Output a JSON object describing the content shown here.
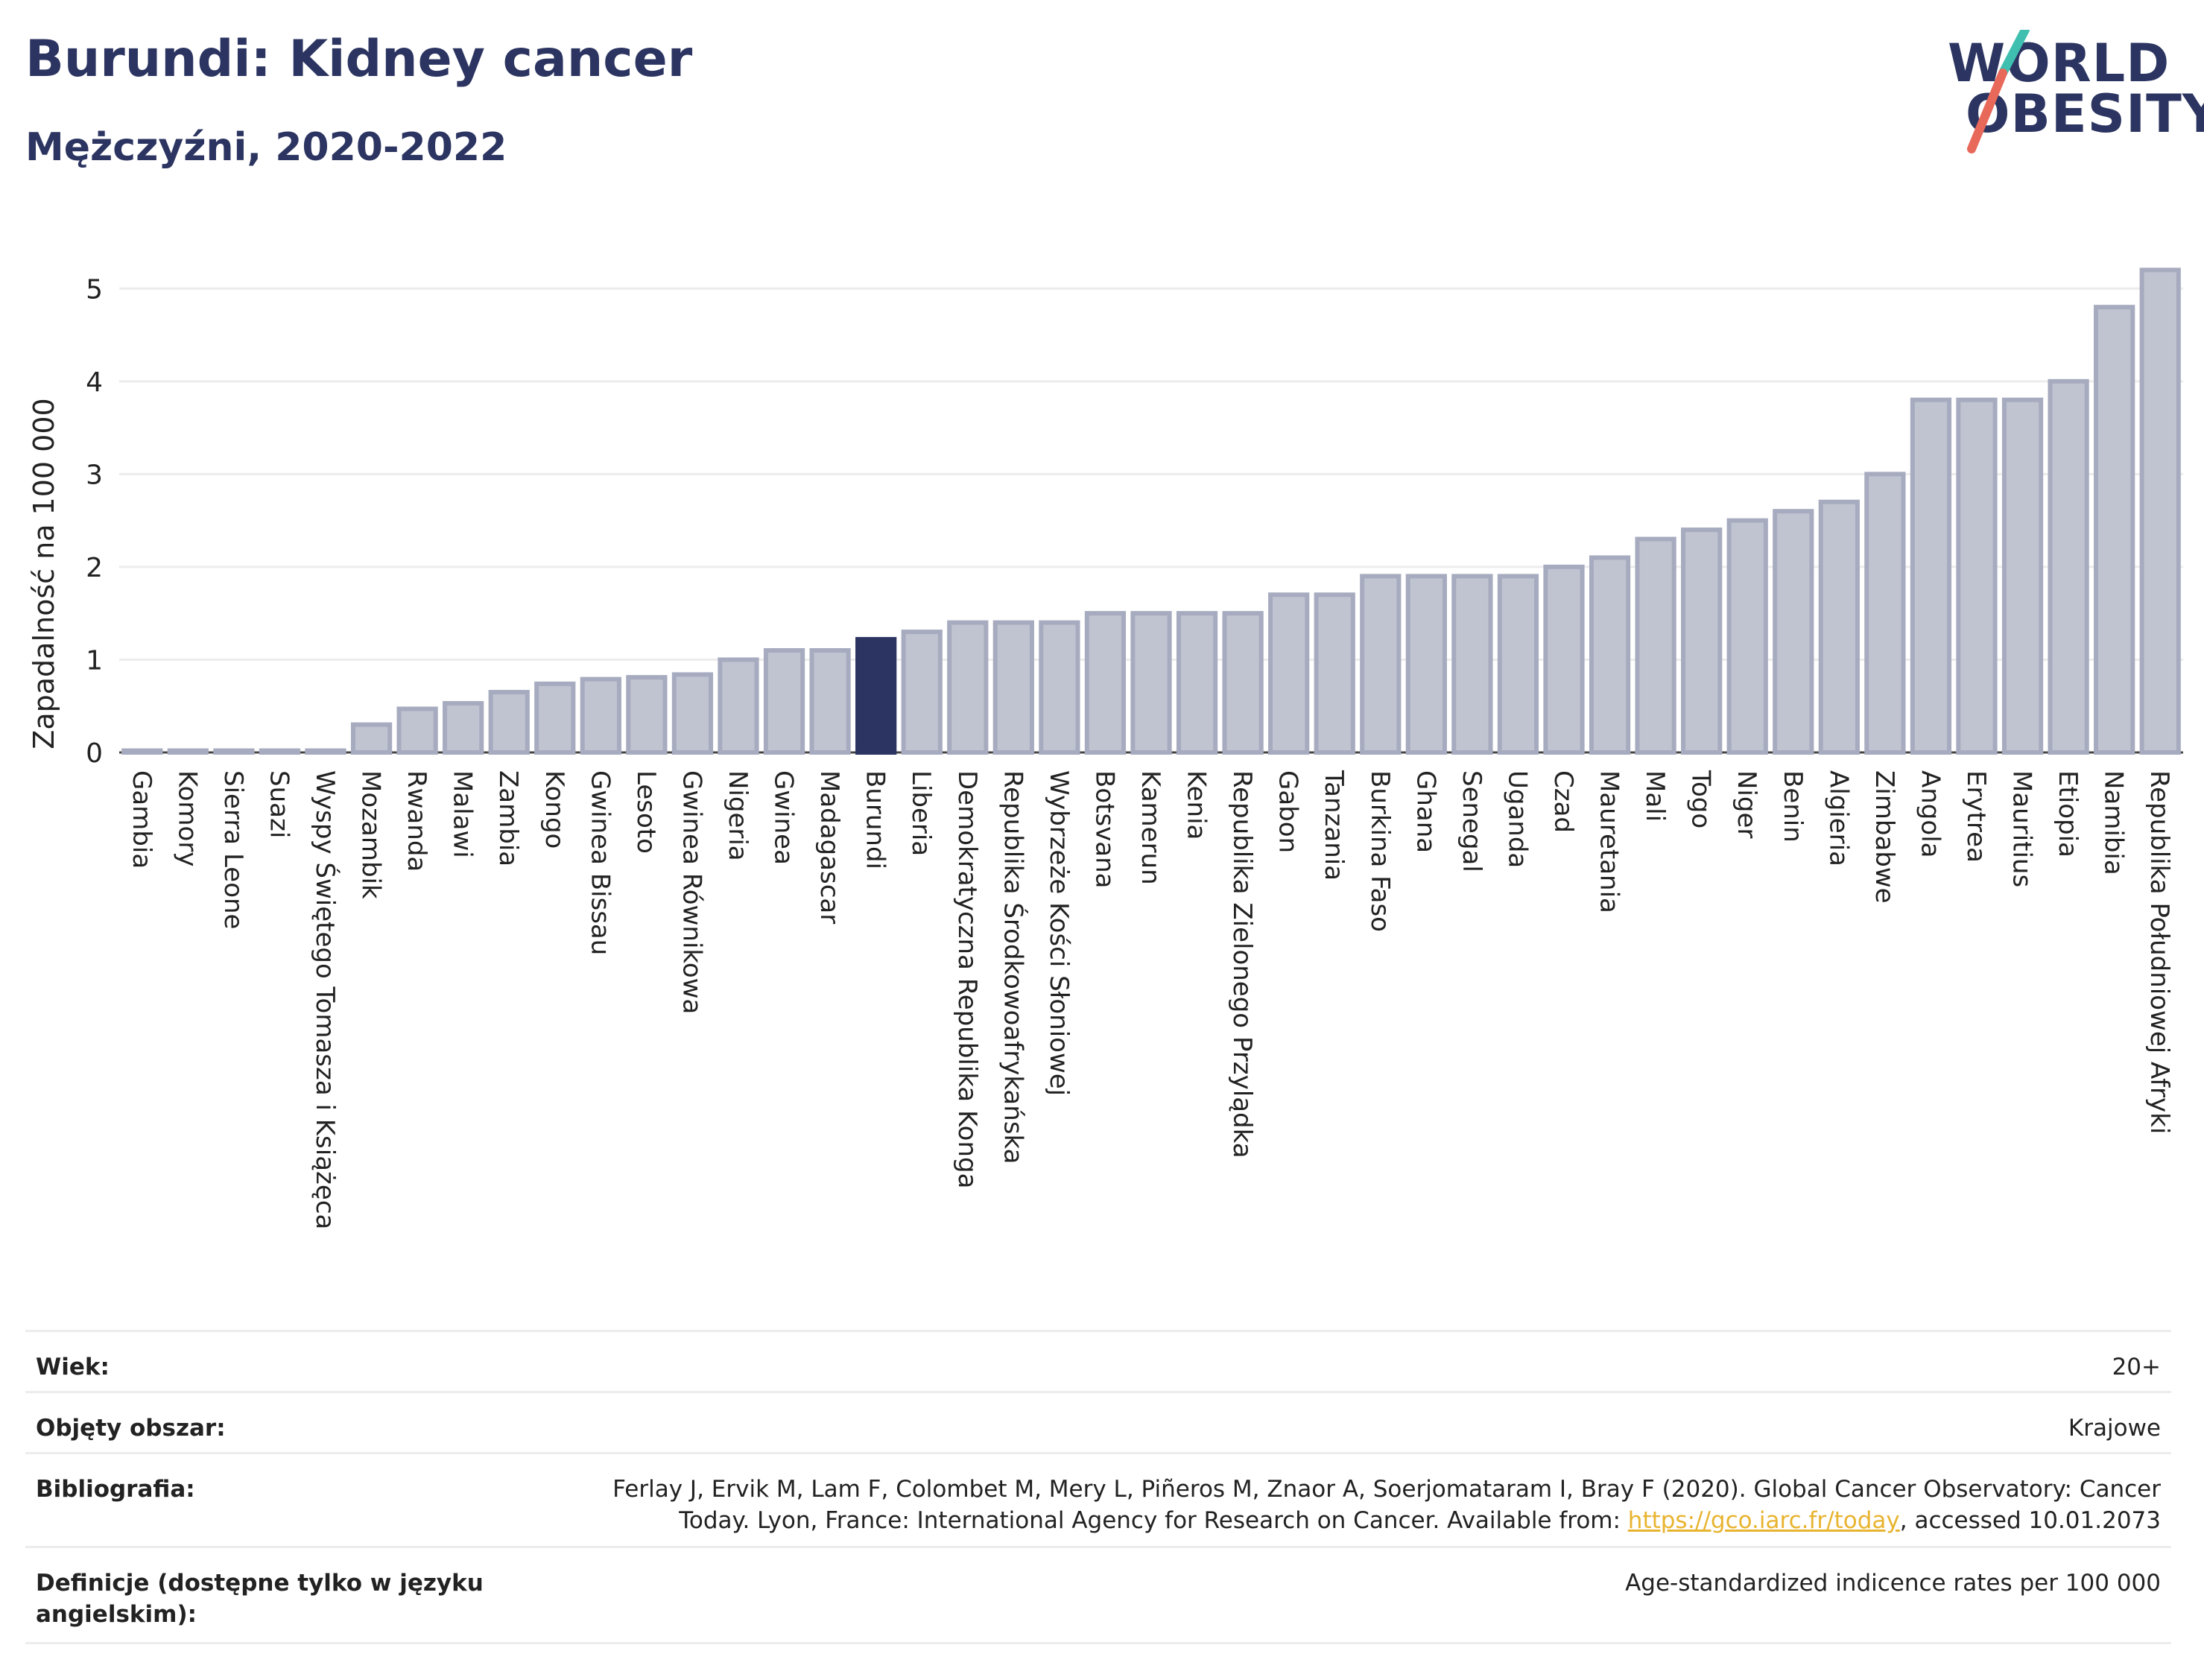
{
  "header": {
    "title": "Burundi: Kidney cancer",
    "subtitle": "Mężczyźni, 2020-2022"
  },
  "logo": {
    "line1": "WORLD",
    "line2": "OBESITY",
    "colors": {
      "text": "#2c3561",
      "slash_top": "#3fbfb0",
      "slash_bottom": "#e8685a"
    }
  },
  "colors": {
    "highlight": "#2c3561",
    "bar_fill": "#c0c3d0",
    "bar_stroke": "#a7abbf",
    "grid": "#ececec"
  },
  "chart_data": {
    "type": "bar",
    "ylabel": "Zapadalność na 100 000",
    "xlabel": "",
    "ylim": [
      0,
      5.5
    ],
    "yticks": [
      0,
      1,
      2,
      3,
      4,
      5
    ],
    "grid": true,
    "highlight": "Burundi",
    "categories": [
      "Gambia",
      "Komory",
      "Sierra Leone",
      "Suazi",
      "Wyspy Świętego Tomasza i Książęca",
      "Mozambik",
      "Rwanda",
      "Malawi",
      "Zambia",
      "Kongo",
      "Gwinea Bissau",
      "Lesoto",
      "Gwinea Równikowa",
      "Nigeria",
      "Gwinea",
      "Madagascar",
      "Burundi",
      "Liberia",
      "Demokratyczna Republika Konga",
      "Republika Środkowoafrykańska",
      "Wybrzeże Kości Słoniowej",
      "Botsvana",
      "Kamerun",
      "Kenia",
      "Republika Zielonego Przylądka",
      "Gabon",
      "Tanzania",
      "Burkina Faso",
      "Ghana",
      "Senegal",
      "Uganda",
      "Czad",
      "Mauretania",
      "Mali",
      "Togo",
      "Niger",
      "Benin",
      "Algieria",
      "Zimbabwe",
      "Angola",
      "Erytrea",
      "Mauritius",
      "Etiopia",
      "Namibia",
      "Republika Południowej Afryki"
    ],
    "values": [
      0.02,
      0.02,
      0.02,
      0.02,
      0.02,
      0.3,
      0.47,
      0.53,
      0.65,
      0.74,
      0.79,
      0.81,
      0.84,
      1.0,
      1.1,
      1.1,
      1.22,
      1.3,
      1.4,
      1.4,
      1.4,
      1.5,
      1.5,
      1.5,
      1.5,
      1.7,
      1.7,
      1.9,
      1.9,
      1.9,
      1.9,
      2.0,
      2.1,
      2.3,
      2.4,
      2.5,
      2.6,
      2.7,
      3.0,
      3.8,
      3.8,
      3.8,
      4.0,
      4.8,
      5.2
    ]
  },
  "meta": {
    "age_label": "Wiek:",
    "age_value": "20+",
    "area_label": "Objęty obszar:",
    "area_value": "Krajowe",
    "bib_label": "Bibliografia:",
    "bib_line1": "Ferlay J, Ervik M, Lam F, Colombet M, Mery L, Piñeros M, Znaor A, Soerjomataram I, Bray F (2020). Global Cancer Observatory: Cancer",
    "bib_line2_pre": "Today. Lyon, France: International Agency for Research on Cancer. Available from: ",
    "bib_link": "https://gco.iarc.fr/today",
    "bib_line2_post": ", accessed 10.01.2073",
    "def_label": "Definicje (dostępne tylko w języku angielskim):",
    "def_value": "Age-standardized indicence rates per 100 000"
  }
}
